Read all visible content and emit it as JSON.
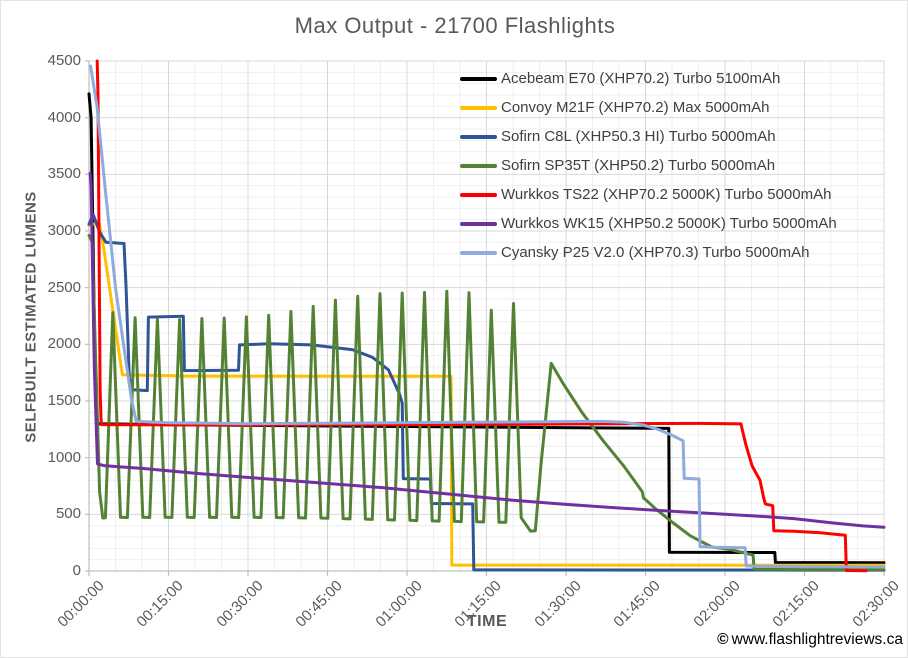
{
  "title": "Max Output - 21700 Flashlights",
  "axes": {
    "y_title": "SELFBUILT ESTIMATED LUMENS",
    "x_title": "TIME",
    "y_tick_labels": [
      "4500",
      "4000",
      "3500",
      "3000",
      "2500",
      "2000",
      "1500",
      "1000",
      "500",
      "0"
    ],
    "x_tick_labels": [
      "00:00:00",
      "00:15:00",
      "00:30:00",
      "00:45:00",
      "01:00:00",
      "01:15:00",
      "01:30:00",
      "01:45:00",
      "02:00:00",
      "02:15:00",
      "02:30:00"
    ]
  },
  "watermark": {
    "symbol": "©",
    "text": "www.flashlightreviews.ca"
  },
  "style_colors": {
    "text": "#595959",
    "legend_text": "#3f3f3f",
    "grid_major": "#d9d9d9",
    "grid_minor": "#efefef",
    "axis_line": "#bfbfbf"
  },
  "chart_data": {
    "type": "line",
    "title": "Max Output - 21700 Flashlights",
    "xlabel": "TIME",
    "ylabel": "SELFBUILT ESTIMATED LUMENS",
    "x_unit": "minutes",
    "xlim": [
      0,
      150
    ],
    "ylim": [
      0,
      4500
    ],
    "x_tick_interval_minutes": 15,
    "y_tick_interval": 500,
    "grid": {
      "major_y": 500,
      "minor_y": 100,
      "major_x_minutes": 15,
      "minor_x_minutes": 5
    },
    "legend_position": "inside-top-right",
    "series": [
      {
        "name": "Acebeam E70 (XHP70.2) Turbo 5100mAh",
        "color": "#000000",
        "points": [
          [
            0,
            4210
          ],
          [
            0.4,
            4000
          ],
          [
            1.0,
            2200
          ],
          [
            1.4,
            1300
          ],
          [
            20,
            1288
          ],
          [
            60,
            1275
          ],
          [
            95,
            1263
          ],
          [
            109.4,
            1258
          ],
          [
            109.5,
            165
          ],
          [
            129.4,
            163
          ],
          [
            129.5,
            75
          ],
          [
            150,
            73
          ]
        ]
      },
      {
        "name": "Convoy M21F (XHP70.2) Max 5000mAh",
        "color": "#ffc000",
        "points": [
          [
            0,
            3050
          ],
          [
            1.9,
            3075
          ],
          [
            2.6,
            2900
          ],
          [
            4.5,
            2300
          ],
          [
            6.3,
            1730
          ],
          [
            20,
            1720
          ],
          [
            68.3,
            1718
          ],
          [
            68.45,
            52
          ],
          [
            150,
            50
          ]
        ]
      },
      {
        "name": "Sofirn C8L (XHP50.3 HI) Turbo 5000mAh",
        "color": "#2f5597",
        "points": [
          [
            0,
            3060
          ],
          [
            0.8,
            3145
          ],
          [
            2.0,
            2990
          ],
          [
            3.2,
            2900
          ],
          [
            6.6,
            2890
          ],
          [
            7.0,
            2500
          ],
          [
            7.6,
            1700
          ],
          [
            8.3,
            1600
          ],
          [
            11.0,
            1592
          ],
          [
            11.2,
            2240
          ],
          [
            17.8,
            2248
          ],
          [
            18.0,
            1768
          ],
          [
            28.2,
            1772
          ],
          [
            28.4,
            1995
          ],
          [
            34,
            2005
          ],
          [
            42,
            1995
          ],
          [
            49.8,
            1952
          ],
          [
            53.5,
            1885
          ],
          [
            56.5,
            1775
          ],
          [
            58.6,
            1560
          ],
          [
            59.1,
            1480
          ],
          [
            59.3,
            815
          ],
          [
            64.4,
            812
          ],
          [
            64.6,
            596
          ],
          [
            72.4,
            592
          ],
          [
            72.6,
            10
          ],
          [
            150,
            8
          ]
        ]
      },
      {
        "name": "Sofirn SP35T (XHP50.2) Turbo 5000mAh",
        "color": "#548235",
        "points": [
          [
            0,
            2960
          ],
          [
            0.6,
            2905
          ],
          [
            1.3,
            1800
          ],
          [
            2.0,
            700
          ],
          [
            2.6,
            468
          ],
          [
            3.1,
            470
          ],
          [
            4.5,
            2280
          ],
          [
            5.95,
            474
          ],
          [
            7.25,
            472
          ],
          [
            8.7,
            2235
          ],
          [
            10.15,
            474
          ],
          [
            11.45,
            472
          ],
          [
            12.9,
            2220
          ],
          [
            14.35,
            474
          ],
          [
            15.65,
            472
          ],
          [
            17.1,
            2218
          ],
          [
            18.55,
            474
          ],
          [
            19.85,
            472
          ],
          [
            21.3,
            2228
          ],
          [
            22.75,
            474
          ],
          [
            24.05,
            472
          ],
          [
            25.5,
            2232
          ],
          [
            26.95,
            474
          ],
          [
            28.25,
            472
          ],
          [
            29.7,
            2242
          ],
          [
            31.15,
            474
          ],
          [
            32.45,
            472
          ],
          [
            33.9,
            2255
          ],
          [
            35.35,
            472
          ],
          [
            36.65,
            470
          ],
          [
            38.1,
            2290
          ],
          [
            39.55,
            470
          ],
          [
            40.85,
            468
          ],
          [
            42.3,
            2335
          ],
          [
            43.75,
            468
          ],
          [
            45.05,
            465
          ],
          [
            46.5,
            2390
          ],
          [
            47.95,
            462
          ],
          [
            49.25,
            460
          ],
          [
            50.7,
            2425
          ],
          [
            52.15,
            458
          ],
          [
            53.45,
            455
          ],
          [
            54.9,
            2448
          ],
          [
            56.35,
            452
          ],
          [
            57.65,
            450
          ],
          [
            59.1,
            2452
          ],
          [
            60.55,
            448
          ],
          [
            61.85,
            445
          ],
          [
            63.3,
            2458
          ],
          [
            64.75,
            442
          ],
          [
            66.05,
            440
          ],
          [
            67.5,
            2468
          ],
          [
            68.95,
            438
          ],
          [
            70.25,
            436
          ],
          [
            71.7,
            2455
          ],
          [
            73.15,
            434
          ],
          [
            74.45,
            432
          ],
          [
            75.9,
            2300
          ],
          [
            77.35,
            430
          ],
          [
            78.65,
            430
          ],
          [
            80.1,
            2360
          ],
          [
            81.55,
            470
          ],
          [
            83.3,
            352
          ],
          [
            84.2,
            356
          ],
          [
            85.3,
            950
          ],
          [
            87.2,
            1832
          ],
          [
            89.5,
            1650
          ],
          [
            93,
            1400
          ],
          [
            97,
            1150
          ],
          [
            101,
            920
          ],
          [
            104.4,
            700
          ],
          [
            104.6,
            646
          ],
          [
            107,
            545
          ],
          [
            110,
            432
          ],
          [
            113.5,
            310
          ],
          [
            117.5,
            212
          ],
          [
            121,
            190
          ],
          [
            125.3,
            140
          ],
          [
            125.5,
            16
          ],
          [
            150,
            12
          ]
        ]
      },
      {
        "name": "Wurkkos TS22 (XHP70.2 5000K) Turbo 5000mAh",
        "color": "#ff0000",
        "points": [
          [
            1.55,
            4500
          ],
          [
            1.7,
            4200
          ],
          [
            2.1,
            1600
          ],
          [
            2.3,
            1292
          ],
          [
            20,
            1288
          ],
          [
            50,
            1290
          ],
          [
            80,
            1295
          ],
          [
            100,
            1300
          ],
          [
            115,
            1302
          ],
          [
            123,
            1298
          ],
          [
            123.9,
            1120
          ],
          [
            125.1,
            930
          ],
          [
            126.6,
            800
          ],
          [
            127.3,
            645
          ],
          [
            127.6,
            592
          ],
          [
            129.0,
            576
          ],
          [
            129.2,
            356
          ],
          [
            133,
            350
          ],
          [
            138,
            338
          ],
          [
            142.7,
            316
          ],
          [
            142.9,
            4
          ],
          [
            146.6,
            3
          ]
        ]
      },
      {
        "name": "Wurkkos WK15 (XHP50.2 5000K) Turbo 5000mAh",
        "color": "#7030a0",
        "points": [
          [
            0.2,
            3510
          ],
          [
            0.4,
            3400
          ],
          [
            1.0,
            1800
          ],
          [
            1.6,
            945
          ],
          [
            3,
            928
          ],
          [
            10,
            905
          ],
          [
            20,
            862
          ],
          [
            37,
            800
          ],
          [
            55,
            737
          ],
          [
            70,
            670
          ],
          [
            80,
            624
          ],
          [
            90,
            588
          ],
          [
            100,
            556
          ],
          [
            110,
            527
          ],
          [
            120,
            500
          ],
          [
            128,
            478
          ],
          [
            133,
            462
          ],
          [
            140,
            425
          ],
          [
            146,
            398
          ],
          [
            150,
            386
          ]
        ]
      },
      {
        "name": "Cyansky P25 V2.0 (XHP70.3) Turbo 5000mAh",
        "color": "#8faadc",
        "points": [
          [
            0.3,
            4455
          ],
          [
            1.5,
            4100
          ],
          [
            3,
            3400
          ],
          [
            5,
            2500
          ],
          [
            6.5,
            2000
          ],
          [
            8,
            1520
          ],
          [
            8.9,
            1320
          ],
          [
            15,
            1308
          ],
          [
            30,
            1300
          ],
          [
            50,
            1305
          ],
          [
            70,
            1312
          ],
          [
            90,
            1318
          ],
          [
            97,
            1320
          ],
          [
            101,
            1312
          ],
          [
            104.5,
            1288
          ],
          [
            107.5,
            1248
          ],
          [
            110,
            1198
          ],
          [
            111.8,
            1155
          ],
          [
            112.1,
            1150
          ],
          [
            112.3,
            818
          ],
          [
            115.1,
            812
          ],
          [
            115.3,
            215
          ],
          [
            118,
            210
          ],
          [
            123.8,
            205
          ],
          [
            124.0,
            44
          ],
          [
            135,
            38
          ],
          [
            150,
            35
          ]
        ]
      }
    ]
  }
}
